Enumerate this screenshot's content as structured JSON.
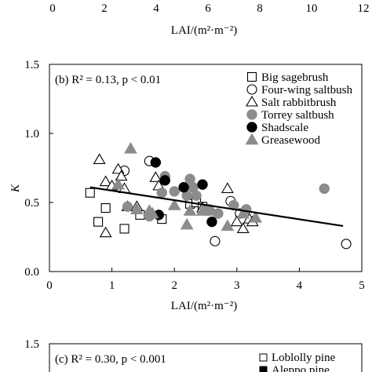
{
  "top_fragment": {
    "tick_labels": [
      "0",
      "2",
      "4",
      "6",
      "8",
      "10",
      "12"
    ],
    "xlabel": "LAI/(m²·m⁻²)"
  },
  "panel_b": {
    "annotation": "(b) R² = 0.13, p < 0.01",
    "ylabel": "K",
    "xlabel": "LAI/(m²·m⁻²)"
  },
  "panel_c": {
    "annotation": "(c) R² = 0.30, p < 0.001",
    "y_top_tick": "1.5",
    "legend": [
      "Loblolly pine",
      "Aleppo pine"
    ]
  },
  "chart_data": [
    {
      "type": "scatter",
      "panel": "b",
      "xlabel": "LAI/(m²·m⁻²)",
      "ylabel": "K",
      "xlim": [
        0,
        5
      ],
      "ylim": [
        0,
        1.5
      ],
      "xticks": [
        0,
        1,
        2,
        3,
        4,
        5
      ],
      "yticks": [
        0.0,
        0.5,
        1.0,
        1.5
      ],
      "ytick_labels": [
        "0.0",
        "0.5",
        "1.0",
        "1.5"
      ],
      "grid": false,
      "legend_position": "top-right",
      "annotation": "(b) R² = 0.13, p < 0.01",
      "series": [
        {
          "name": "Big sagebrush",
          "marker": "square-open",
          "points": [
            [
              0.65,
              0.57
            ],
            [
              0.78,
              0.36
            ],
            [
              0.9,
              0.46
            ],
            [
              1.2,
              0.31
            ],
            [
              1.45,
              0.41
            ],
            [
              1.8,
              0.38
            ],
            [
              2.25,
              0.49
            ],
            [
              2.35,
              0.5
            ],
            [
              2.45,
              0.47
            ]
          ]
        },
        {
          "name": "Four-wing saltbush",
          "marker": "circle-open",
          "points": [
            [
              1.2,
              0.73
            ],
            [
              1.6,
              0.8
            ],
            [
              2.65,
              0.22
            ],
            [
              2.9,
              0.51
            ],
            [
              3.05,
              0.42
            ],
            [
              4.75,
              0.2
            ]
          ]
        },
        {
          "name": "Salt rabbitbrush",
          "marker": "triangle-open",
          "points": [
            [
              0.8,
              0.81
            ],
            [
              0.9,
              0.65
            ],
            [
              0.9,
              0.28
            ],
            [
              1.0,
              0.62
            ],
            [
              1.1,
              0.74
            ],
            [
              1.15,
              0.69
            ],
            [
              1.2,
              0.6
            ],
            [
              1.25,
              0.47
            ],
            [
              1.4,
              0.47
            ],
            [
              1.7,
              0.68
            ],
            [
              1.75,
              0.62
            ],
            [
              2.45,
              0.46
            ],
            [
              2.85,
              0.6
            ],
            [
              3.0,
              0.36
            ],
            [
              3.1,
              0.31
            ],
            [
              3.2,
              0.38
            ],
            [
              3.25,
              0.36
            ]
          ]
        },
        {
          "name": "Torrey saltbush",
          "marker": "circle-filled",
          "color": "#8c8c8c",
          "points": [
            [
              1.25,
              0.47
            ],
            [
              1.6,
              0.4
            ],
            [
              1.8,
              0.57
            ],
            [
              1.85,
              0.69
            ],
            [
              2.0,
              0.58
            ],
            [
              2.2,
              0.55
            ],
            [
              2.25,
              0.67
            ],
            [
              2.3,
              0.61
            ],
            [
              2.35,
              0.55
            ],
            [
              2.55,
              0.45
            ],
            [
              2.7,
              0.42
            ],
            [
              2.95,
              0.48
            ],
            [
              3.15,
              0.45
            ],
            [
              4.4,
              0.6
            ]
          ]
        },
        {
          "name": "Shadscale",
          "marker": "circle-filled",
          "color": "#000000",
          "points": [
            [
              1.7,
              0.79
            ],
            [
              1.75,
              0.41
            ],
            [
              1.85,
              0.66
            ],
            [
              2.15,
              0.61
            ],
            [
              2.45,
              0.63
            ],
            [
              2.6,
              0.36
            ]
          ]
        },
        {
          "name": "Greasewood",
          "marker": "triangle-filled",
          "color": "#8c8c8c",
          "points": [
            [
              1.1,
              0.63
            ],
            [
              1.3,
              0.89
            ],
            [
              1.4,
              0.45
            ],
            [
              1.6,
              0.44
            ],
            [
              1.65,
              0.42
            ],
            [
              2.0,
              0.48
            ],
            [
              2.2,
              0.34
            ],
            [
              2.25,
              0.44
            ],
            [
              2.45,
              0.44
            ],
            [
              2.6,
              0.44
            ],
            [
              2.85,
              0.33
            ],
            [
              3.1,
              0.42
            ],
            [
              3.3,
              0.39
            ]
          ]
        }
      ],
      "regression": {
        "x": [
          0.65,
          4.7
        ],
        "y": [
          0.61,
          0.33
        ]
      }
    }
  ]
}
